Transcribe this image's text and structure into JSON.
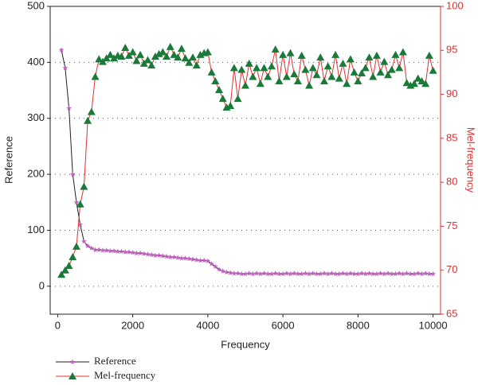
{
  "chart_data": {
    "type": "line",
    "x_label": "Frequency",
    "y_label": "Reference",
    "y2_label": "Mel-frequency",
    "xlim": [
      -200,
      10200
    ],
    "xticks": [
      0,
      2000,
      4000,
      6000,
      8000,
      10000
    ],
    "ylim": [
      -50,
      500
    ],
    "yticks": [
      0,
      100,
      200,
      300,
      400,
      500
    ],
    "y2lim": [
      65,
      100
    ],
    "y2ticks": [
      65,
      70,
      75,
      80,
      85,
      90,
      95,
      100
    ],
    "grid": true,
    "legend": "bottom-left",
    "x": [
      100,
      200,
      300,
      400,
      500,
      600,
      700,
      800,
      900,
      1000,
      1100,
      1200,
      1300,
      1400,
      1500,
      1600,
      1700,
      1800,
      1900,
      2000,
      2100,
      2200,
      2300,
      2400,
      2500,
      2600,
      2700,
      2800,
      2900,
      3000,
      3100,
      3200,
      3300,
      3400,
      3500,
      3600,
      3700,
      3800,
      3900,
      4000,
      4100,
      4200,
      4300,
      4400,
      4500,
      4600,
      4700,
      4800,
      4900,
      5000,
      5100,
      5200,
      5300,
      5400,
      5500,
      5600,
      5700,
      5800,
      5900,
      6000,
      6100,
      6200,
      6300,
      6400,
      6500,
      6600,
      6700,
      6800,
      6900,
      7000,
      7100,
      7200,
      7300,
      7400,
      7500,
      7600,
      7700,
      7800,
      7900,
      8000,
      8100,
      8200,
      8300,
      8400,
      8500,
      8600,
      8700,
      8800,
      8900,
      9000,
      9100,
      9200,
      9300,
      9400,
      9500,
      9600,
      9700,
      9800,
      9900,
      10000
    ],
    "series": [
      {
        "name": "Reference",
        "color": "#222222",
        "marker_color": "#c060c0",
        "marker": "star",
        "values": [
          422,
          390,
          318,
          200,
          150,
          110,
          80,
          72,
          68,
          65,
          65,
          64,
          64,
          63,
          63,
          62,
          62,
          61,
          61,
          60,
          59,
          59,
          58,
          57,
          56,
          55,
          55,
          54,
          53,
          52,
          52,
          51,
          50,
          50,
          49,
          48,
          47,
          46,
          46,
          45,
          40,
          35,
          30,
          27,
          25,
          24,
          23,
          23,
          22,
          22,
          23,
          22,
          23,
          22,
          23,
          22,
          22,
          23,
          22,
          22,
          23,
          22,
          23,
          22,
          22,
          23,
          22,
          23,
          22,
          22,
          23,
          22,
          23,
          22,
          22,
          23,
          22,
          23,
          22,
          22,
          23,
          22,
          23,
          22,
          22,
          23,
          22,
          23,
          22,
          22,
          23,
          22,
          23,
          22,
          22,
          23,
          22,
          23,
          22,
          22
        ]
      },
      {
        "name": "Mel-frequency",
        "color": "#e03030",
        "marker_color": "#1a7a3a",
        "marker": "triangle",
        "axis": "y2",
        "values": [
          69.5,
          70,
          70.5,
          71.5,
          72.7,
          77.5,
          79.5,
          87,
          88,
          92,
          94,
          93.7,
          94.1,
          94.5,
          94.1,
          94.4,
          94.3,
          95.3,
          94.4,
          94.8,
          93.8,
          94.5,
          93.5,
          93.9,
          93.3,
          94.3,
          94.6,
          94.8,
          94.3,
          95.4,
          94.5,
          94.2,
          95.2,
          94.1,
          93.6,
          94.2,
          93.3,
          94.5,
          94.7,
          94.8,
          92.5,
          91.5,
          90.5,
          89.5,
          88.5,
          88.7,
          93,
          89.5,
          92.8,
          91,
          93.5,
          92,
          93,
          91.2,
          93,
          92,
          93.2,
          95.1,
          91.5,
          94.5,
          92,
          94.7,
          92.3,
          91.5,
          94.4,
          92.8,
          91,
          93,
          92.2,
          94.2,
          91.5,
          93.2,
          92,
          94.5,
          91.8,
          93.5,
          91.2,
          94,
          92.5,
          91.5,
          92.4,
          93,
          94.2,
          92,
          94.4,
          92.5,
          93.7,
          92.2,
          92.8,
          94.5,
          93,
          94.8,
          91.3,
          91,
          91.2,
          91.8,
          91.5,
          91.2,
          94.4,
          92.7
        ]
      }
    ]
  }
}
